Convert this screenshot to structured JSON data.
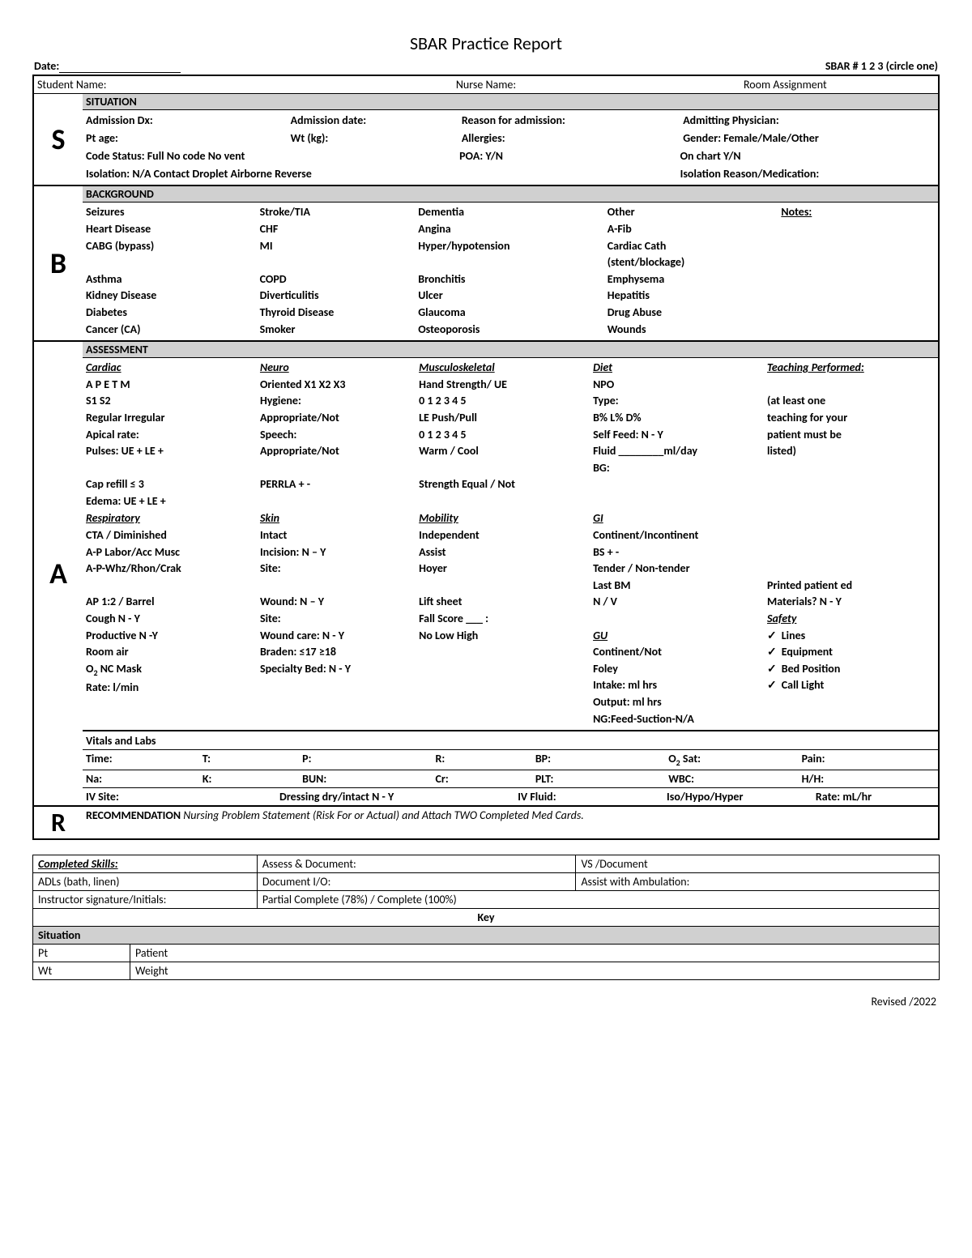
{
  "title": "SBAR Practice Report",
  "top": {
    "date_label": "Date:",
    "sbar_label": "SBAR # 1  2  3   (circle one)"
  },
  "names": {
    "student": "Student Name:",
    "nurse": "Nurse Name:",
    "room": "Room Assignment"
  },
  "situation": {
    "head": "SITUATION",
    "admdx": "Admission Dx:",
    "admdate": "Admission date:",
    "reason": "Reason for admission:",
    "phys": "Admitting Physician:",
    "ptage": "Pt age:",
    "wt": "Wt (kg):",
    "allerg": "Allergies:",
    "gender": "Gender:  Female/Male/Other",
    "code": "Code Status:     Full       No code        No vent",
    "poa": "POA: Y/N",
    "onchart": "On chart  Y/N",
    "iso": "Isolation:     N/A      Contact       Droplet       Airborne       Reverse",
    "isoreason": "Isolation Reason/Medication:"
  },
  "background": {
    "head": "BACKGROUND",
    "rows": [
      [
        "Seizures",
        "Stroke/TIA",
        "Dementia",
        "Other"
      ],
      [
        "Heart Disease",
        "CHF",
        "Angina",
        "A-Fib"
      ],
      [
        "CABG (bypass)",
        "MI",
        "Hyper/hypotension",
        "Cardiac Cath"
      ],
      [
        "",
        "",
        "",
        "(stent/blockage)"
      ],
      [
        "Asthma",
        "COPD",
        "Bronchitis",
        "Emphysema"
      ],
      [
        "Kidney Disease",
        "Diverticulitis",
        "Ulcer",
        "Hepatitis"
      ],
      [
        "Diabetes",
        "Thyroid Disease",
        "Glaucoma",
        "Drug Abuse"
      ],
      [
        "Cancer (CA)",
        "Smoker",
        "Osteoporosis",
        "Wounds"
      ]
    ],
    "notes": "Notes:"
  },
  "assessment": {
    "head": "ASSESSMENT",
    "cardiac": {
      "h": "Cardiac",
      "l": [
        "A   P   E   T   M",
        "S1   S2",
        "Regular      Irregular",
        "Apical rate:",
        "Pulses:  UE +    LE +",
        "",
        "Cap refill ≤ 3",
        "Edema:  UE +    LE  +"
      ]
    },
    "neuro": {
      "h": "Neuro",
      "l": [
        "Oriented  X1 X2 X3",
        "Hygiene:",
        "Appropriate/Not",
        "Speech:",
        "Appropriate/Not",
        "",
        "PERRLA   +    -"
      ]
    },
    "musc": {
      "h": "Musculoskeletal",
      "l": [
        "Hand Strength/ UE",
        "   0  1  2  3  4  5",
        "LE Push/Pull",
        "   0  1  2  3  4  5",
        "Warm / Cool",
        "",
        "Strength Equal / Not"
      ]
    },
    "diet": {
      "h": "Diet",
      "l": [
        "NPO",
        "Type:",
        "B%        L%      D%",
        "Self Feed:  N - Y",
        "Fluid ________ml/day",
        "BG:"
      ]
    },
    "teaching": {
      "h": "Teaching Performed:",
      "l": [
        "",
        "(at least one",
        "teaching for your",
        "patient must be",
        "listed)"
      ]
    },
    "resp": {
      "h": "Respiratory",
      "l": [
        "CTA / Diminished",
        "A-P Labor/Acc Musc",
        "A-P-Whz/Rhon/Crak",
        "",
        "AP 1:2 / Barrel",
        "Cough N - Y",
        "Productive N -Y",
        "Room air",
        "O₂   NC   Mask",
        "Rate:     l/min"
      ]
    },
    "skin": {
      "h": "Skin",
      "l": [
        "Intact",
        "Incision:  N – Y",
        "  Site:",
        "",
        "Wound:  N – Y",
        "  Site:",
        "Wound care:  N - Y",
        "Braden:  ≤17   ≥18",
        "Specialty Bed:  N - Y"
      ]
    },
    "mob": {
      "h": "Mobility",
      "l": [
        "Independent",
        "Assist",
        "Hoyer",
        "",
        "Lift sheet",
        "Fall Score ___ :",
        "   No    Low    High"
      ]
    },
    "gi": {
      "h": "GI",
      "l": [
        "Continent/Incontinent",
        "BS    +     -",
        "Tender / Non-tender",
        "Last BM",
        "N / V"
      ]
    },
    "gu": {
      "h": "GU",
      "l": [
        "Continent/Not",
        "Foley",
        "Intake:     ml     hrs",
        "Output:    ml     hrs",
        "NG:Feed-Suction-N/A"
      ]
    },
    "printed": "Printed patient ed",
    "materials": "Materials?    N - Y",
    "safety": {
      "h": "Safety",
      "l": [
        "Lines",
        "Equipment",
        "Bed Position",
        "Call Light"
      ]
    },
    "vitals_head": "Vitals  and Labs",
    "vitals": [
      "Time:",
      "T:",
      "P:",
      "R:",
      "BP:",
      "O₂ Sat:",
      "Pain:"
    ],
    "labs": [
      "Na:",
      "K:",
      "BUN:",
      "Cr:",
      "PLT:",
      "WBC:",
      "H/H:"
    ],
    "iv": [
      "IV Site:",
      "Dressing dry/intact    N - Y",
      "IV Fluid:",
      "Iso/Hypo/Hyper",
      "Rate:        mL/hr"
    ]
  },
  "recommendation": {
    "head": "RECOMMENDATION",
    "note": "Nursing Problem Statement (Risk For or Actual) and Attach TWO Completed Med Cards."
  },
  "skills": {
    "completed": "Completed Skills:",
    "assess": "Assess & Document:",
    "vs": "VS /Document",
    "adls": "ADLs (bath, linen)",
    "io": "Document I/O:",
    "amb": "Assist with Ambulation:",
    "instr": "Instructor signature/Initials:",
    "partial": "Partial Complete (78%) / Complete (100%)",
    "key": "Key",
    "sit": "Situation",
    "pt_k": "Pt",
    "pt_v": "Patient",
    "wt_k": "Wt",
    "wt_v": "Weight"
  },
  "footer": "Revised /2022"
}
